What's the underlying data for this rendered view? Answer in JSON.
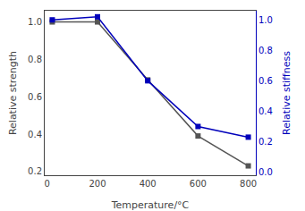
{
  "chart_data": {
    "type": "line",
    "x_label": "Temperature/°C",
    "y_label": "Relative strength",
    "y2_label": "Relative stiffness",
    "x": [
      20,
      200,
      400,
      600,
      800
    ],
    "series": [
      {
        "values": [
          1.0,
          1.0,
          0.69,
          0.39,
          0.23
        ],
        "color": "#555555",
        "marker": "square",
        "line_style": "solid",
        "axis": "y"
      },
      {
        "values": [
          1.0,
          1.02,
          0.6,
          0.3,
          0.23
        ],
        "color": "#0000bb",
        "marker": "square",
        "line_style": "solid",
        "axis": "y2"
      }
    ],
    "xlim": [
      -10,
      830
    ],
    "xticks": [
      0,
      200,
      400,
      600,
      800
    ],
    "ylim": [
      0.18,
      1.06
    ],
    "yticks": [
      0.2,
      0.4,
      0.6,
      0.8,
      {
        "value": 1.0,
        "label": "1.0"
      }
    ],
    "y2lim": [
      -0.02,
      1.06
    ],
    "y2ticks": [
      {
        "value": 0.0,
        "label": "0.0"
      },
      0.2,
      0.4,
      0.6,
      0.8,
      {
        "value": 1.0,
        "label": "1.0"
      }
    ],
    "grid": false
  }
}
